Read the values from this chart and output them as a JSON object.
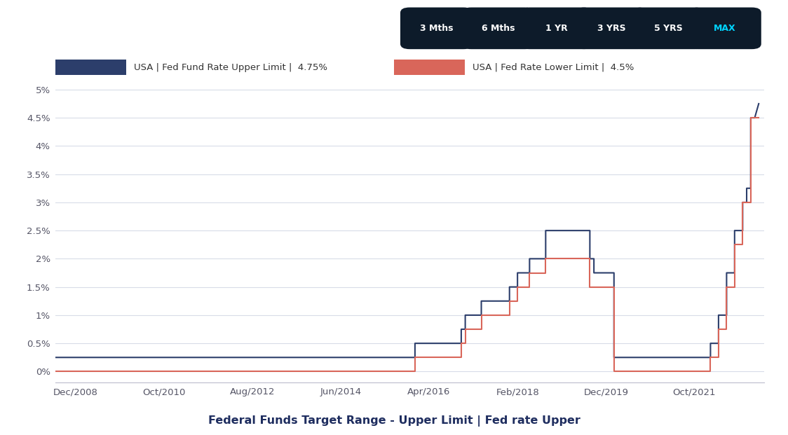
{
  "title": "Federal Funds Target Range - Upper Limit | Fed rate Upper",
  "background_color": "#ffffff",
  "plot_bg_color": "#ffffff",
  "grid_color": "#d8dce8",
  "upper_line_color": "#2c3e6b",
  "lower_line_color": "#d9665a",
  "upper_label": "USA | Fed Fund Rate Upper Limit |  4.75%",
  "lower_label": "USA | Fed Rate Lower Limit |  4.5%",
  "ylabel_ticks": [
    "0%",
    "0.5%",
    "1%",
    "1.5%",
    "2%",
    "2.5%",
    "3%",
    "3.5%",
    "4%",
    "4.5%",
    "5%"
  ],
  "ytick_values": [
    0,
    0.005,
    0.01,
    0.015,
    0.02,
    0.025,
    0.03,
    0.035,
    0.04,
    0.045,
    0.05
  ],
  "xtick_labels": [
    "Dec/2008",
    "Oct/2010",
    "Aug/2012",
    "Jun/2014",
    "Apr/2016",
    "Feb/2018",
    "Dec/2019",
    "Oct/2021"
  ],
  "xtick_positions": [
    2008.917,
    2010.75,
    2012.583,
    2014.417,
    2016.25,
    2018.083,
    2019.917,
    2021.75
  ],
  "button_labels": [
    "3 Mths",
    "6 Mths",
    "1 YR",
    "3 YRS",
    "5 YRS",
    "MAX"
  ],
  "button_text_colors": [
    "#ffffff",
    "#ffffff",
    "#ffffff",
    "#ffffff",
    "#ffffff",
    "#00d4ff"
  ],
  "upper_data_dates": [
    2008.0,
    2008.917,
    2015.958,
    2015.958,
    2016.083,
    2016.083,
    2016.917,
    2016.917,
    2017.0,
    2017.0,
    2017.333,
    2017.333,
    2017.917,
    2017.917,
    2018.083,
    2018.083,
    2018.333,
    2018.333,
    2018.667,
    2018.667,
    2018.917,
    2018.917,
    2019.583,
    2019.583,
    2019.667,
    2019.667,
    2019.917,
    2019.917,
    2020.083,
    2020.083,
    2022.083,
    2022.083,
    2022.25,
    2022.25,
    2022.417,
    2022.417,
    2022.583,
    2022.583,
    2022.75,
    2022.75,
    2022.833,
    2022.833,
    2022.917,
    2022.917,
    2023.0,
    2023.083
  ],
  "upper_data_vals": [
    0.0025,
    0.0025,
    0.0025,
    0.005,
    0.005,
    0.005,
    0.005,
    0.0075,
    0.0075,
    0.01,
    0.01,
    0.0125,
    0.0125,
    0.015,
    0.015,
    0.0175,
    0.0175,
    0.02,
    0.02,
    0.025,
    0.025,
    0.025,
    0.025,
    0.02,
    0.02,
    0.0175,
    0.0175,
    0.0175,
    0.0175,
    0.0025,
    0.0025,
    0.005,
    0.005,
    0.01,
    0.01,
    0.0175,
    0.0175,
    0.025,
    0.025,
    0.03,
    0.03,
    0.0325,
    0.0325,
    0.045,
    0.045,
    0.0475
  ],
  "lower_data_dates": [
    2008.0,
    2015.958,
    2015.958,
    2016.083,
    2016.083,
    2016.917,
    2016.917,
    2017.0,
    2017.0,
    2017.333,
    2017.333,
    2017.917,
    2017.917,
    2018.083,
    2018.083,
    2018.333,
    2018.333,
    2018.667,
    2018.667,
    2018.917,
    2018.917,
    2019.583,
    2019.583,
    2019.667,
    2019.667,
    2019.917,
    2019.917,
    2020.083,
    2020.083,
    2022.083,
    2022.083,
    2022.25,
    2022.25,
    2022.417,
    2022.417,
    2022.583,
    2022.583,
    2022.75,
    2022.75,
    2022.833,
    2022.833,
    2022.917,
    2022.917,
    2023.083
  ],
  "lower_data_vals": [
    0.0,
    0.0,
    0.0025,
    0.0025,
    0.0025,
    0.0025,
    0.005,
    0.005,
    0.0075,
    0.0075,
    0.01,
    0.01,
    0.0125,
    0.0125,
    0.015,
    0.015,
    0.0175,
    0.0175,
    0.02,
    0.02,
    0.02,
    0.02,
    0.015,
    0.015,
    0.015,
    0.015,
    0.015,
    0.015,
    0.0,
    0.0,
    0.0025,
    0.0025,
    0.0075,
    0.0075,
    0.015,
    0.015,
    0.0225,
    0.0225,
    0.03,
    0.03,
    0.03,
    0.03,
    0.045,
    0.045
  ]
}
